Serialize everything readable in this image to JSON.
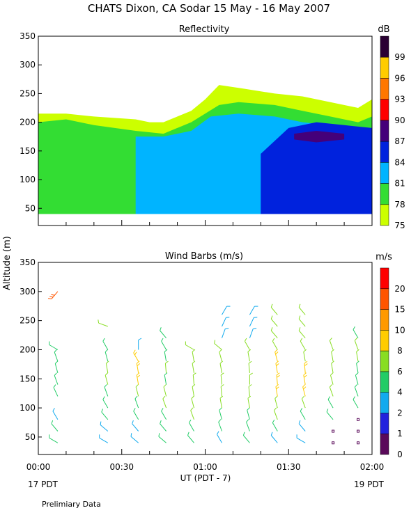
{
  "title": "CHATS Dixon, CA  Sodar  15 May - 16 May 2007",
  "y_axis_label": "Altitude (m)",
  "x_axis_label": "UT  (PDT - 7)",
  "x_ticks": [
    "00:00",
    "00:30",
    "01:00",
    "01:30",
    "02:00"
  ],
  "start_label": "17 PDT",
  "end_label": "19 PDT",
  "footer": "Prelimiary Data",
  "chart_data": [
    {
      "type": "heatmap",
      "title": "Reflectivity",
      "ylim": [
        20,
        350
      ],
      "y_ticks": [
        50,
        100,
        150,
        200,
        250,
        300,
        350
      ],
      "xlim": [
        0,
        120
      ],
      "colorbar": {
        "unit": "dB",
        "ticks": [
          "75",
          "78",
          "81",
          "84",
          "87",
          "90",
          "93",
          "96",
          "99"
        ],
        "levels": [
          75,
          78,
          81,
          84,
          87,
          90,
          93,
          96,
          99
        ],
        "colors": [
          "#ccff00",
          "#33dd33",
          "#00b4ff",
          "#0022dd",
          "#44007a",
          "#ff0000",
          "#ff7700",
          "#ffcc00",
          "#2a0033"
        ]
      },
      "contours": [
        {
          "level": 75,
          "x": [
            0,
            10,
            20,
            35,
            40,
            45,
            55,
            60,
            65,
            72,
            85,
            95,
            105,
            115,
            120
          ],
          "bottom": [
            40,
            40,
            40,
            40,
            40,
            40,
            40,
            40,
            40,
            40,
            40,
            40,
            40,
            40,
            40
          ],
          "top": [
            215,
            215,
            210,
            205,
            200,
            200,
            220,
            240,
            265,
            260,
            250,
            245,
            235,
            225,
            240
          ]
        },
        {
          "level": 78,
          "x": [
            0,
            10,
            20,
            35,
            45,
            55,
            65,
            72,
            85,
            95,
            105,
            115,
            120
          ],
          "bottom": [
            40,
            40,
            40,
            40,
            40,
            40,
            40,
            40,
            40,
            40,
            40,
            40,
            40
          ],
          "top": [
            200,
            205,
            195,
            185,
            180,
            200,
            230,
            235,
            230,
            220,
            210,
            200,
            210
          ]
        },
        {
          "level": 81,
          "x": [
            35,
            45,
            55,
            62,
            72,
            85,
            95,
            105,
            115,
            120
          ],
          "bottom": [
            40,
            40,
            40,
            40,
            40,
            40,
            40,
            40,
            40,
            40
          ],
          "top": [
            175,
            175,
            185,
            210,
            215,
            210,
            200,
            195,
            190,
            190
          ]
        },
        {
          "level": 84,
          "x": [
            80,
            90,
            100,
            110,
            120
          ],
          "bottom": [
            40,
            40,
            40,
            40,
            40
          ],
          "top": [
            145,
            190,
            200,
            195,
            190
          ]
        },
        {
          "level": 87,
          "x": [
            92,
            100,
            110
          ],
          "bottom": [
            170,
            165,
            170
          ],
          "top": [
            180,
            185,
            180
          ]
        }
      ]
    },
    {
      "type": "scatter",
      "title": "Wind Barbs (m/s)",
      "ylim": [
        20,
        350
      ],
      "y_ticks": [
        50,
        100,
        150,
        200,
        250,
        300,
        350
      ],
      "xlim": [
        0,
        120
      ],
      "colorbar": {
        "unit": "m/s",
        "ticks": [
          "0",
          "1",
          "2",
          "4",
          "6",
          "8",
          "10",
          "15",
          "20"
        ],
        "levels": [
          0,
          1,
          2,
          4,
          6,
          8,
          10,
          15,
          20
        ],
        "colors": [
          "#5a0a5a",
          "#2222dd",
          "#11aaee",
          "#22cc66",
          "#88dd22",
          "#ffcc00",
          "#ff9900",
          "#ff5500",
          "#ff0000"
        ]
      },
      "columns_x": [
        7,
        25,
        36,
        46,
        56,
        66,
        76,
        86,
        96,
        106,
        115
      ],
      "heights": [
        40,
        60,
        80,
        100,
        120,
        140,
        160,
        180,
        200,
        220,
        240,
        260,
        300
      ],
      "speed": [
        [
          5,
          4,
          3,
          null,
          5,
          5,
          4,
          4,
          5,
          null,
          null,
          null,
          15
        ],
        [
          3,
          3,
          4,
          5,
          5,
          6,
          6,
          5,
          5,
          null,
          6,
          null,
          null
        ],
        [
          3,
          3,
          4,
          5,
          6,
          8,
          8,
          8,
          2,
          null,
          null,
          null,
          null
        ],
        [
          4,
          5,
          5,
          6,
          6,
          5,
          6,
          5,
          5,
          5,
          null,
          null,
          null
        ],
        [
          4,
          5,
          6,
          6,
          6,
          6,
          6,
          6,
          6,
          null,
          null,
          null,
          null
        ],
        [
          3,
          4,
          5,
          6,
          6,
          6,
          6,
          6,
          6,
          2,
          2,
          2,
          null
        ],
        [
          4,
          4,
          5,
          6,
          6,
          6,
          6,
          6,
          6,
          2,
          2,
          2,
          null
        ],
        [
          3,
          4,
          6,
          7,
          8,
          8,
          8,
          8,
          6,
          6,
          6,
          6,
          null
        ],
        [
          3,
          3,
          5,
          6,
          8,
          8,
          8,
          7,
          6,
          6,
          6,
          6,
          null
        ],
        [
          0,
          0,
          4,
          5,
          6,
          6,
          6,
          6,
          6,
          null,
          null,
          null,
          null
        ],
        [
          0,
          0,
          0,
          4,
          4,
          4,
          5,
          6,
          6,
          5,
          null,
          null,
          null
        ]
      ],
      "direction": [
        [
          300,
          320,
          330,
          null,
          335,
          340,
          345,
          340,
          300,
          null,
          null,
          null,
          220
        ],
        [
          300,
          310,
          320,
          330,
          340,
          345,
          350,
          345,
          330,
          null,
          290,
          null,
          null
        ],
        [
          310,
          320,
          330,
          340,
          345,
          350,
          350,
          330,
          0,
          null,
          null,
          null,
          null
        ],
        [
          310,
          320,
          330,
          340,
          345,
          350,
          355,
          350,
          330,
          320,
          null,
          null,
          null
        ],
        [
          320,
          330,
          340,
          345,
          350,
          355,
          350,
          350,
          300,
          null,
          null,
          null,
          null
        ],
        [
          330,
          340,
          345,
          350,
          355,
          355,
          350,
          345,
          310,
          20,
          25,
          30,
          null
        ],
        [
          320,
          340,
          345,
          350,
          355,
          0,
          355,
          350,
          330,
          20,
          25,
          30,
          null
        ],
        [
          320,
          330,
          340,
          345,
          350,
          355,
          350,
          345,
          330,
          320,
          320,
          320,
          null
        ],
        [
          300,
          320,
          330,
          340,
          345,
          350,
          355,
          350,
          330,
          320,
          320,
          320,
          null
        ],
        [
          0,
          0,
          320,
          330,
          340,
          345,
          350,
          350,
          340,
          null,
          null,
          null,
          null
        ],
        [
          0,
          0,
          0,
          330,
          340,
          345,
          350,
          350,
          340,
          330,
          null,
          null,
          null
        ]
      ]
    }
  ]
}
